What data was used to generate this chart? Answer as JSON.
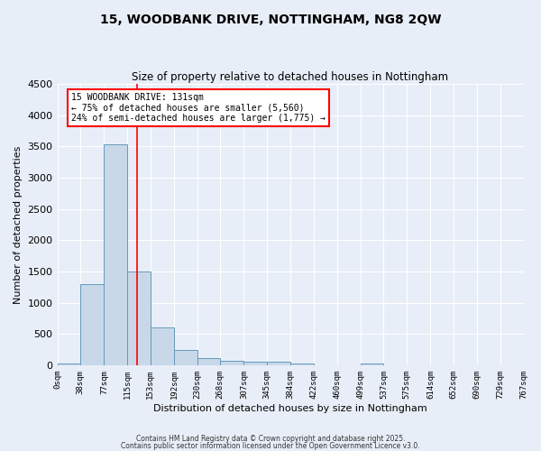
{
  "title": "15, WOODBANK DRIVE, NOTTINGHAM, NG8 2QW",
  "subtitle": "Size of property relative to detached houses in Nottingham",
  "xlabel": "Distribution of detached houses by size in Nottingham",
  "ylabel": "Number of detached properties",
  "bar_color": "#c8d8e8",
  "bar_edge_color": "#6699bb",
  "background_color": "#e8eef8",
  "fig_background_color": "#e8eef8",
  "grid_color": "#ffffff",
  "bin_edges": [
    0,
    38,
    77,
    115,
    153,
    192,
    230,
    268,
    307,
    345,
    384,
    422,
    460,
    499,
    537,
    575,
    614,
    652,
    690,
    729,
    767
  ],
  "bar_heights": [
    30,
    1300,
    3530,
    1500,
    600,
    250,
    120,
    75,
    50,
    50,
    30,
    0,
    0,
    30,
    0,
    0,
    0,
    0,
    0,
    0
  ],
  "tick_labels": [
    "0sqm",
    "38sqm",
    "77sqm",
    "115sqm",
    "153sqm",
    "192sqm",
    "230sqm",
    "268sqm",
    "307sqm",
    "345sqm",
    "384sqm",
    "422sqm",
    "460sqm",
    "499sqm",
    "537sqm",
    "575sqm",
    "614sqm",
    "652sqm",
    "690sqm",
    "729sqm",
    "767sqm"
  ],
  "red_line_x": 131,
  "annotation_line1": "15 WOODBANK DRIVE: 131sqm",
  "annotation_line2": "← 75% of detached houses are smaller (5,560)",
  "annotation_line3": "24% of semi-detached houses are larger (1,775) →",
  "ylim": [
    0,
    4500
  ],
  "yticks": [
    0,
    500,
    1000,
    1500,
    2000,
    2500,
    3000,
    3500,
    4000,
    4500
  ],
  "footnote1": "Contains HM Land Registry data © Crown copyright and database right 2025.",
  "footnote2": "Contains public sector information licensed under the Open Government Licence v3.0."
}
